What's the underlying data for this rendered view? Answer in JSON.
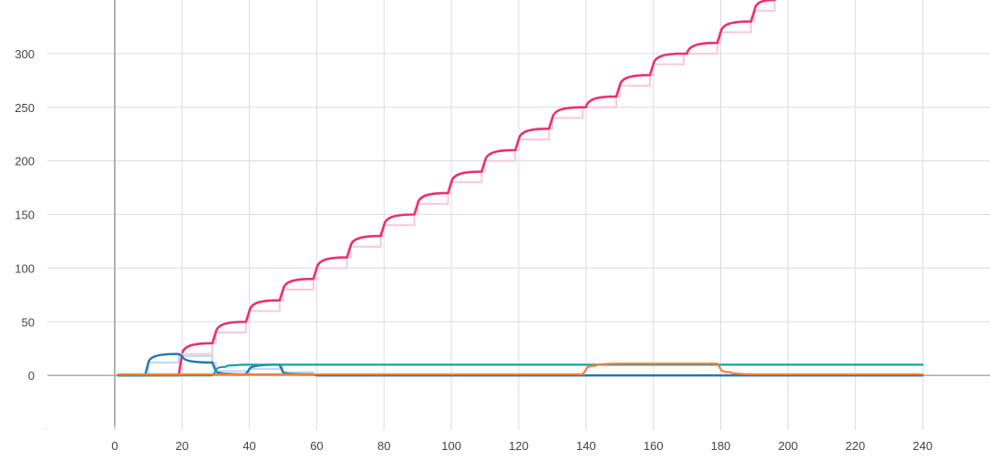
{
  "colors": {
    "background": "#ffffff",
    "grid": "#dcdcdc",
    "axis": "#999999",
    "zero_line": "#a8a8a8",
    "text": "#444444"
  },
  "chart_data": {
    "type": "line",
    "title": "",
    "xlabel": "",
    "ylabel": "",
    "xlim": [
      -20,
      260
    ],
    "ylim": [
      -50,
      350
    ],
    "x_ticks": [
      0,
      20,
      40,
      60,
      80,
      100,
      120,
      140,
      160,
      180,
      200,
      220,
      240
    ],
    "y_ticks": [
      0,
      50,
      100,
      150,
      200,
      250,
      300
    ],
    "grid": true,
    "legend": "none",
    "series": [
      {
        "color": "#e8316f",
        "width": 2.6,
        "ghost_color": "#f6c9d8",
        "x": [
          1,
          19,
          20,
          29,
          30,
          39,
          40,
          49,
          50,
          59,
          60,
          69,
          70,
          79,
          80,
          89,
          90,
          99,
          100,
          109,
          110,
          119,
          120,
          129,
          130,
          139,
          140,
          149,
          150,
          159,
          160,
          169,
          170,
          179,
          180,
          189,
          190,
          196
        ],
        "y": [
          0,
          0,
          20,
          30,
          40,
          50,
          60,
          70,
          80,
          90,
          100,
          110,
          120,
          130,
          140,
          150,
          160,
          170,
          180,
          190,
          200,
          210,
          220,
          230,
          240,
          250,
          250,
          260,
          270,
          280,
          290,
          300,
          300,
          310,
          320,
          330,
          340,
          350
        ]
      },
      {
        "color": "#1f78b4",
        "width": 2.4,
        "ghost_color": "#bfd9ee",
        "x": [
          1,
          9,
          10,
          19,
          20,
          29,
          30,
          39,
          40,
          49,
          50,
          59,
          60,
          70,
          80,
          140,
          240
        ],
        "y": [
          0,
          0,
          12,
          20,
          18,
          12,
          4,
          1,
          6,
          10,
          3,
          1,
          0,
          0,
          0,
          0,
          0
        ]
      },
      {
        "color": "#17a2a0",
        "width": 2.2,
        "x": [
          1,
          29,
          30,
          33,
          36,
          40,
          50,
          100,
          150,
          200,
          240
        ],
        "y": [
          0,
          0,
          4,
          8,
          9.5,
          10,
          10,
          10,
          10,
          10,
          10
        ]
      },
      {
        "color": "#f07f3c",
        "width": 2.2,
        "x": [
          1,
          139,
          140,
          143,
          146,
          150,
          160,
          170,
          179,
          180,
          183,
          186,
          190,
          200,
          240
        ],
        "y": [
          1,
          1,
          5,
          9,
          10.5,
          11,
          11,
          11,
          11,
          6,
          3,
          1.5,
          1,
          1,
          1
        ]
      }
    ]
  }
}
